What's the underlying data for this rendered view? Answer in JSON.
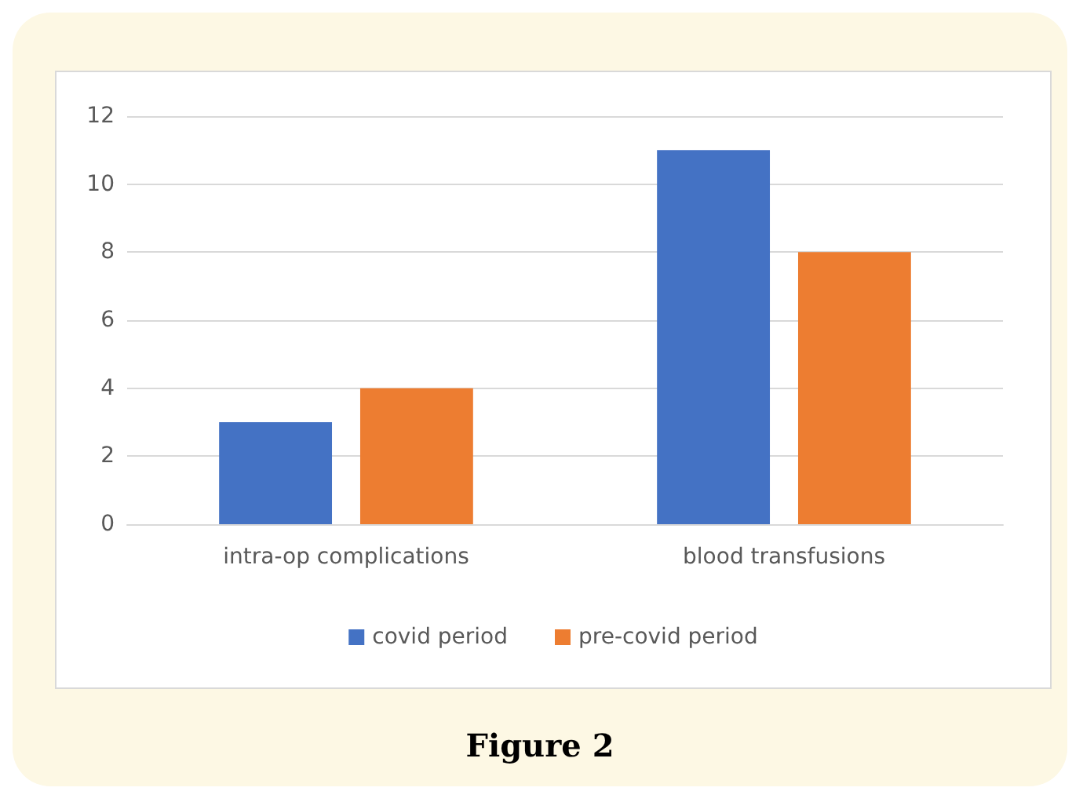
{
  "chart_data": {
    "type": "bar",
    "categories": [
      "intra-op complications",
      "blood transfusions"
    ],
    "series": [
      {
        "name": "covid period",
        "color": "#4472c4",
        "values": [
          3,
          11
        ]
      },
      {
        "name": "pre-covid period",
        "color": "#ed7d31",
        "values": [
          4,
          8
        ]
      }
    ],
    "ylim": [
      0,
      12
    ],
    "yticks": [
      0,
      2,
      4,
      6,
      8,
      10,
      12
    ],
    "grid": "y",
    "legend": "bottom",
    "annotations": [
      "Figure 2"
    ]
  }
}
